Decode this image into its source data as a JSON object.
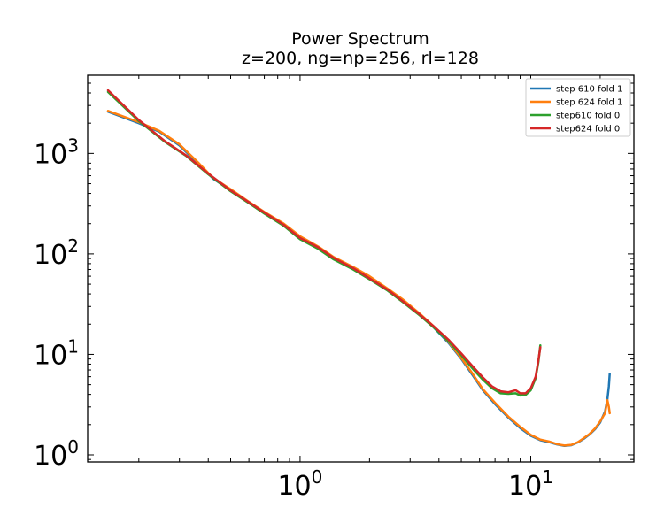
{
  "chart_data": {
    "type": "line",
    "title": "Power Spectrum",
    "subtitle": "z=200, ng=np=256, rl=128",
    "xlabel": "",
    "ylabel": "",
    "xscale": "log",
    "yscale": "log",
    "xlim": [
      0.12,
      28
    ],
    "ylim": [
      0.85,
      6000
    ],
    "grid": false,
    "legend_position": "top-right",
    "x_ticks": [
      {
        "base": "10",
        "exp": "0",
        "value": 1
      },
      {
        "base": "10",
        "exp": "1",
        "value": 10
      }
    ],
    "y_ticks": [
      {
        "base": "10",
        "exp": "0",
        "value": 1
      },
      {
        "base": "10",
        "exp": "1",
        "value": 10
      },
      {
        "base": "10",
        "exp": "2",
        "value": 100
      },
      {
        "base": "10",
        "exp": "3",
        "value": 1000
      }
    ],
    "series": [
      {
        "name": "step 610 fold 1",
        "color": "#1f77b4",
        "points": [
          [
            0.147,
            2600
          ],
          [
            0.2,
            2000
          ],
          [
            0.245,
            1650
          ],
          [
            0.3,
            1200
          ],
          [
            0.36,
            800
          ],
          [
            0.42,
            560
          ],
          [
            0.5,
            430
          ],
          [
            0.6,
            320
          ],
          [
            0.7,
            255
          ],
          [
            0.85,
            195
          ],
          [
            1.0,
            145
          ],
          [
            1.2,
            115
          ],
          [
            1.4,
            90
          ],
          [
            1.7,
            72
          ],
          [
            2.0,
            58
          ],
          [
            2.4,
            44
          ],
          [
            2.8,
            34
          ],
          [
            3.3,
            25
          ],
          [
            3.8,
            18.5
          ],
          [
            4.4,
            13
          ],
          [
            5.0,
            9
          ],
          [
            5.6,
            6.2
          ],
          [
            6.2,
            4.4
          ],
          [
            7.0,
            3.2
          ],
          [
            8.0,
            2.35
          ],
          [
            9.0,
            1.85
          ],
          [
            10.0,
            1.55
          ],
          [
            11.0,
            1.4
          ],
          [
            12.0,
            1.34
          ],
          [
            13.0,
            1.27
          ],
          [
            14.0,
            1.23
          ],
          [
            15.0,
            1.25
          ],
          [
            16.0,
            1.33
          ],
          [
            17.0,
            1.45
          ],
          [
            18.0,
            1.6
          ],
          [
            19.0,
            1.8
          ],
          [
            20.0,
            2.1
          ],
          [
            21.0,
            2.7
          ],
          [
            21.5,
            3.6
          ],
          [
            21.8,
            4.8
          ],
          [
            22.0,
            6.4
          ]
        ]
      },
      {
        "name": "step 624 fold 1",
        "color": "#ff7f0e",
        "points": [
          [
            0.147,
            2650
          ],
          [
            0.2,
            2050
          ],
          [
            0.245,
            1680
          ],
          [
            0.3,
            1230
          ],
          [
            0.36,
            820
          ],
          [
            0.42,
            570
          ],
          [
            0.5,
            440
          ],
          [
            0.6,
            330
          ],
          [
            0.7,
            262
          ],
          [
            0.85,
            200
          ],
          [
            1.0,
            150
          ],
          [
            1.2,
            118
          ],
          [
            1.4,
            93
          ],
          [
            1.7,
            74
          ],
          [
            2.0,
            60
          ],
          [
            2.4,
            45
          ],
          [
            2.8,
            35
          ],
          [
            3.3,
            25.5
          ],
          [
            3.8,
            19
          ],
          [
            4.4,
            13.3
          ],
          [
            5.0,
            9.2
          ],
          [
            5.6,
            6.4
          ],
          [
            6.2,
            4.5
          ],
          [
            7.0,
            3.3
          ],
          [
            8.0,
            2.4
          ],
          [
            9.0,
            1.9
          ],
          [
            10.0,
            1.58
          ],
          [
            11.0,
            1.42
          ],
          [
            12.0,
            1.36
          ],
          [
            13.0,
            1.28
          ],
          [
            14.0,
            1.24
          ],
          [
            15.0,
            1.26
          ],
          [
            16.0,
            1.34
          ],
          [
            17.0,
            1.47
          ],
          [
            18.0,
            1.62
          ],
          [
            19.0,
            1.83
          ],
          [
            20.0,
            2.15
          ],
          [
            21.0,
            2.6
          ],
          [
            21.5,
            3.5
          ],
          [
            21.8,
            3.0
          ],
          [
            22.0,
            2.6
          ]
        ]
      },
      {
        "name": "step610 fold 0",
        "color": "#2ca02c",
        "points": [
          [
            0.147,
            4100
          ],
          [
            0.2,
            2100
          ],
          [
            0.26,
            1300
          ],
          [
            0.32,
            950
          ],
          [
            0.4,
            620
          ],
          [
            0.5,
            420
          ],
          [
            0.6,
            320
          ],
          [
            0.7,
            252
          ],
          [
            0.85,
            190
          ],
          [
            1.0,
            140
          ],
          [
            1.2,
            112
          ],
          [
            1.4,
            88
          ],
          [
            1.7,
            70
          ],
          [
            2.0,
            56
          ],
          [
            2.4,
            43
          ],
          [
            2.8,
            33
          ],
          [
            3.3,
            24.5
          ],
          [
            3.8,
            18.5
          ],
          [
            4.4,
            13.5
          ],
          [
            5.0,
            9.8
          ],
          [
            5.6,
            7.2
          ],
          [
            6.2,
            5.6
          ],
          [
            6.8,
            4.6
          ],
          [
            7.4,
            4.1
          ],
          [
            8.0,
            4.05
          ],
          [
            8.6,
            4.1
          ],
          [
            9.0,
            3.9
          ],
          [
            9.5,
            3.95
          ],
          [
            10.0,
            4.4
          ],
          [
            10.5,
            5.8
          ],
          [
            10.8,
            8.5
          ],
          [
            11.0,
            12.3
          ]
        ]
      },
      {
        "name": "step624 fold 0",
        "color": "#d62728",
        "points": [
          [
            0.147,
            4250
          ],
          [
            0.2,
            2150
          ],
          [
            0.26,
            1320
          ],
          [
            0.32,
            960
          ],
          [
            0.4,
            630
          ],
          [
            0.5,
            428
          ],
          [
            0.6,
            326
          ],
          [
            0.7,
            258
          ],
          [
            0.85,
            195
          ],
          [
            1.0,
            144
          ],
          [
            1.2,
            116
          ],
          [
            1.4,
            91
          ],
          [
            1.7,
            72
          ],
          [
            2.0,
            57
          ],
          [
            2.4,
            44
          ],
          [
            2.8,
            33.5
          ],
          [
            3.3,
            25
          ],
          [
            3.8,
            19
          ],
          [
            4.4,
            14
          ],
          [
            5.0,
            10.2
          ],
          [
            5.6,
            7.6
          ],
          [
            6.2,
            5.9
          ],
          [
            6.8,
            4.8
          ],
          [
            7.4,
            4.3
          ],
          [
            8.0,
            4.2
          ],
          [
            8.6,
            4.4
          ],
          [
            9.0,
            4.1
          ],
          [
            9.5,
            4.1
          ],
          [
            10.0,
            4.6
          ],
          [
            10.5,
            6.0
          ],
          [
            10.8,
            8.8
          ],
          [
            11.0,
            11.8
          ]
        ]
      }
    ]
  }
}
